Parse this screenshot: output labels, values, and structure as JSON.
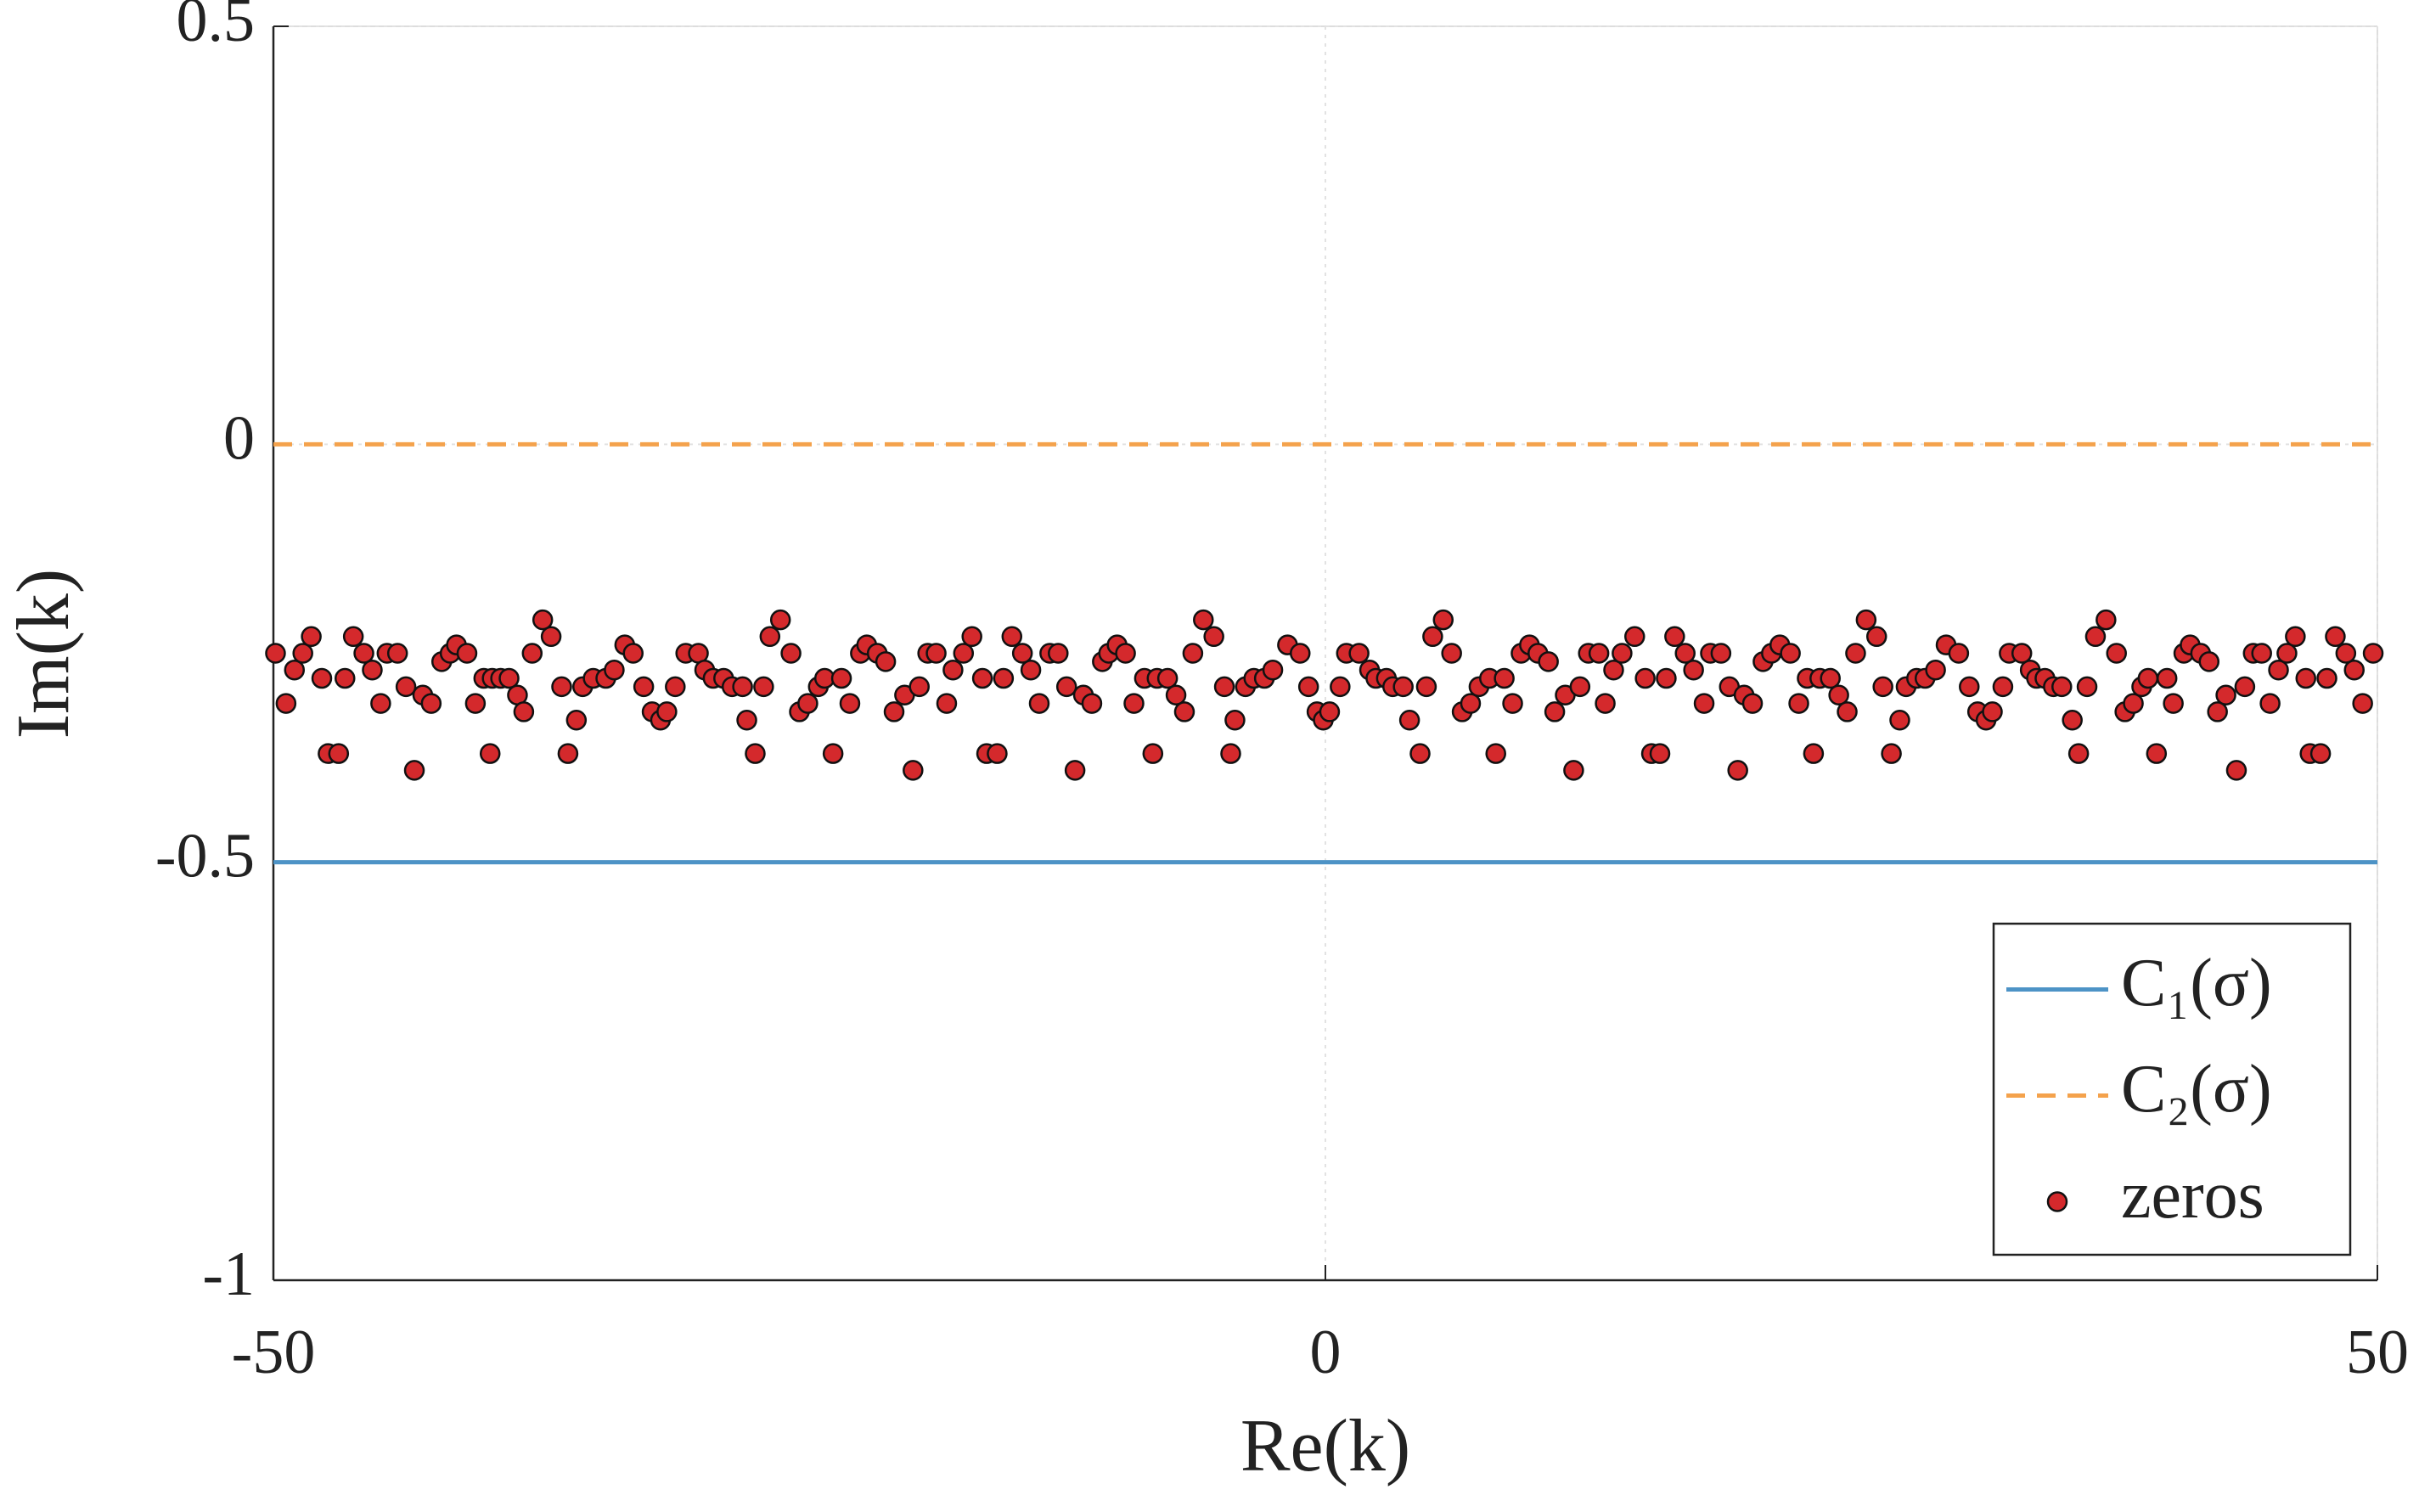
{
  "chart_data": {
    "type": "scatter",
    "xlabel": "Re(k)",
    "ylabel": "Im(k)",
    "xlim": [
      -50,
      50
    ],
    "ylim": [
      -1,
      0.5
    ],
    "xticks": [
      -50,
      0,
      50
    ],
    "yticks": [
      -1,
      -0.5,
      0,
      0.5
    ],
    "grid": true,
    "legend": "lower right",
    "series": [
      {
        "name": "C₁(σ)",
        "type": "line",
        "style": "solid",
        "color": "#4d93c6",
        "x": [
          -50,
          50
        ],
        "values": [
          -0.5,
          -0.5
        ]
      },
      {
        "name": "C₂(σ)",
        "type": "line",
        "style": "dashed",
        "color": "#f4a24c",
        "x": [
          -50,
          50
        ],
        "values": [
          0,
          0
        ]
      },
      {
        "name": "zeros",
        "type": "scatter",
        "color": "#d4292c",
        "x": [
          -49.9,
          -49.4,
          -49.0,
          -48.6,
          -48.2,
          -47.7,
          -47.4,
          -46.9,
          -46.6,
          -46.2,
          -45.7,
          -45.3,
          -44.9,
          -44.6,
          -44.1,
          -43.7,
          -43.3,
          -42.9,
          -42.5,
          -42.0,
          -41.6,
          -41.3,
          -40.8,
          -40.4,
          -40.0,
          -39.7,
          -39.6,
          -39.2,
          -38.8,
          -38.4,
          -38.1,
          -37.7,
          -37.2,
          -36.8,
          -36.3,
          -36.0,
          -35.6,
          -35.3,
          -34.8,
          -34.2,
          -33.8,
          -33.3,
          -32.9,
          -32.4,
          -32.0,
          -31.6,
          -31.3,
          -30.9,
          -30.4,
          -29.8,
          -29.5,
          -29.1,
          -28.6,
          -28.2,
          -27.7,
          -27.5,
          -27.1,
          -26.7,
          -26.4,
          -25.9,
          -25.4,
          -25.0,
          -24.6,
          -24.1,
          -23.8,
          -23.4,
          -23.0,
          -22.6,
          -22.1,
          -21.8,
          -21.3,
          -20.9,
          -20.5,
          -20.0,
          -19.6,
          -19.3,
          -18.9,
          -18.5,
          -18.0,
          -17.7,
          -17.2,
          -16.8,
          -16.3,
          -16.1,
          -15.6,
          -15.3,
          -14.9,
          -14.4,
          -14.0,
          -13.6,
          -13.1,
          -12.7,
          -12.3,
          -11.9,
          -11.5,
          -11.1,
          -10.6,
          -10.3,
          -9.9,
          -9.5,
          -9.1,
          -8.6,
          -8.2,
          -8.0,
          -7.5,
          -7.1,
          -6.7,
          -6.3,
          -5.8,
          -5.3,
          -4.8,
          -4.5,
          -4.3,
          -3.8,
          -3.4,
          -2.9,
          -2.5,
          -1.8,
          -1.2,
          -0.8,
          -0.4,
          -0.1,
          0.2,
          0.7,
          1.0,
          1.6,
          2.1,
          2.4,
          2.9,
          3.2,
          3.7,
          4.0,
          4.5,
          4.8,
          5.1,
          5.6,
          6.0,
          6.5,
          6.9,
          7.3,
          7.8,
          8.1,
          8.5,
          8.9,
          9.3,
          9.7,
          10.1,
          10.6,
          10.9,
          11.4,
          11.8,
          12.1,
          12.5,
          13.0,
          13.3,
          13.7,
          14.1,
          14.7,
          15.2,
          15.5,
          15.9,
          16.2,
          16.6,
          17.1,
          17.5,
          18.0,
          18.3,
          18.8,
          19.2,
          19.6,
          19.9,
          20.3,
          20.8,
          21.2,
          21.6,
          22.1,
          22.5,
          22.9,
          23.2,
          23.5,
          24.0,
          24.4,
          24.8,
          25.2,
          25.7,
          26.2,
          26.5,
          26.9,
          27.3,
          27.6,
          28.1,
          28.5,
          29.0,
          29.5,
          30.1,
          30.6,
          31.0,
          31.4,
          31.7,
          32.2,
          32.5,
          33.1,
          33.5,
          33.8,
          34.2,
          34.6,
          35.0,
          35.5,
          35.8,
          36.2,
          36.6,
          37.1,
          37.6,
          38.0,
          38.4,
          38.8,
          39.1,
          39.5,
          40.0,
          40.3,
          40.8,
          41.1,
          41.6,
          42.0,
          42.4,
          42.8,
          43.3,
          43.7,
          44.1,
          44.5,
          44.9,
          45.3,
          45.7,
          46.1,
          46.6,
          46.8,
          47.3,
          47.6,
          48.0,
          48.5,
          48.9,
          49.3,
          49.8
        ],
        "values": [
          -0.25,
          -0.31,
          -0.27,
          -0.25,
          -0.23,
          -0.28,
          -0.37,
          -0.37,
          -0.28,
          -0.23,
          -0.25,
          -0.27,
          -0.31,
          -0.25,
          -0.25,
          -0.29,
          -0.39,
          -0.3,
          -0.31,
          -0.26,
          -0.25,
          -0.24,
          -0.25,
          -0.31,
          -0.28,
          -0.37,
          -0.28,
          -0.28,
          -0.28,
          -0.3,
          -0.32,
          -0.25,
          -0.21,
          -0.23,
          -0.29,
          -0.37,
          -0.33,
          -0.29,
          -0.28,
          -0.28,
          -0.27,
          -0.24,
          -0.25,
          -0.29,
          -0.32,
          -0.33,
          -0.32,
          -0.29,
          -0.25,
          -0.25,
          -0.27,
          -0.28,
          -0.28,
          -0.29,
          -0.29,
          -0.33,
          -0.37,
          -0.29,
          -0.23,
          -0.21,
          -0.25,
          -0.32,
          -0.31,
          -0.29,
          -0.28,
          -0.37,
          -0.28,
          -0.31,
          -0.25,
          -0.24,
          -0.25,
          -0.26,
          -0.32,
          -0.3,
          -0.39,
          -0.29,
          -0.25,
          -0.25,
          -0.31,
          -0.27,
          -0.25,
          -0.23,
          -0.28,
          -0.37,
          -0.37,
          -0.28,
          -0.23,
          -0.25,
          -0.27,
          -0.31,
          -0.25,
          -0.25,
          -0.29,
          -0.39,
          -0.3,
          -0.31,
          -0.26,
          -0.25,
          -0.24,
          -0.25,
          -0.31,
          -0.28,
          -0.37,
          -0.28,
          -0.28,
          -0.3,
          -0.32,
          -0.25,
          -0.21,
          -0.23,
          -0.29,
          -0.37,
          -0.33,
          -0.29,
          -0.28,
          -0.28,
          -0.27,
          -0.24,
          -0.25,
          -0.29,
          -0.32,
          -0.33,
          -0.32,
          -0.29,
          -0.25,
          -0.25,
          -0.27,
          -0.28,
          -0.28,
          -0.29,
          -0.29,
          -0.33,
          -0.37,
          -0.29,
          -0.23,
          -0.21,
          -0.25,
          -0.32,
          -0.31,
          -0.29,
          -0.28,
          -0.37,
          -0.28,
          -0.31,
          -0.25,
          -0.24,
          -0.25,
          -0.26,
          -0.32,
          -0.3,
          -0.39,
          -0.29,
          -0.25,
          -0.25,
          -0.31,
          -0.27,
          -0.25,
          -0.23,
          -0.28,
          -0.37,
          -0.37,
          -0.28,
          -0.23,
          -0.25,
          -0.27,
          -0.31,
          -0.25,
          -0.25,
          -0.29,
          -0.39,
          -0.3,
          -0.31,
          -0.26,
          -0.25,
          -0.24,
          -0.25,
          -0.31,
          -0.28,
          -0.37,
          -0.28,
          -0.28,
          -0.3,
          -0.32,
          -0.25,
          -0.21,
          -0.23,
          -0.29,
          -0.37,
          -0.33,
          -0.29,
          -0.28,
          -0.28,
          -0.27,
          -0.24,
          -0.25,
          -0.29,
          -0.32,
          -0.33,
          -0.32,
          -0.29,
          -0.25,
          -0.25,
          -0.27,
          -0.28,
          -0.28,
          -0.29,
          -0.29,
          -0.33,
          -0.37,
          -0.29,
          -0.23,
          -0.21,
          -0.25,
          -0.32,
          -0.31,
          -0.29,
          -0.28,
          -0.37,
          -0.28,
          -0.31,
          -0.25,
          -0.24,
          -0.25,
          -0.26,
          -0.32,
          -0.3,
          -0.39,
          -0.29,
          -0.25,
          -0.25,
          -0.31,
          -0.27,
          -0.25,
          -0.23,
          -0.28,
          -0.37,
          -0.37,
          -0.28,
          -0.23,
          -0.25,
          -0.27,
          -0.31,
          -0.25
        ]
      }
    ]
  }
}
